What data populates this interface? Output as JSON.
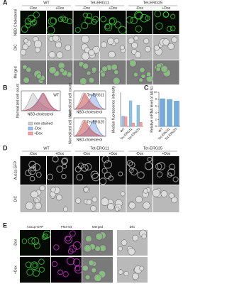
{
  "panel_a": {
    "label": "A",
    "columns": [
      "WT",
      "Tet-ERG11",
      "Tet-ERG25"
    ],
    "conditions": [
      "-Dox",
      "+Dox"
    ],
    "rows": [
      "NBD-Cholesterol",
      "DIC",
      "Merged"
    ]
  },
  "panel_b": {
    "label": "B",
    "histogram_titles": [
      "WT",
      "Tet-ERG11",
      "Tet-ERG25"
    ],
    "histogram_y_label": "Normalized cell count",
    "histogram_x_label": "NBD-cholesterol",
    "legend": [
      "non-stained",
      "-Dox",
      "+Dox"
    ],
    "bar_chart": {
      "type": "bar",
      "y_label": "Median fluorescence intensity",
      "categories": [
        "WT",
        "Tet-ERG11",
        "Tet-ERG25"
      ],
      "ylim": [
        0,
        100
      ],
      "series": [
        {
          "color": "#6baed6",
          "values": [
            30,
            75,
            62
          ]
        },
        {
          "color": "#f08080",
          "values": [
            28,
            10,
            12
          ]
        }
      ]
    }
  },
  "panel_c": {
    "label": "C",
    "chart_data": {
      "type": "bar",
      "y_label": "Relative mRNA level of AUS1",
      "categories": [
        "WT",
        "Tet-ERG11",
        "Tet-ERG25"
      ],
      "values": [
        8.1,
        7.9,
        7.4
      ],
      "color": "#4a8fd0",
      "ylim": [
        0,
        10
      ],
      "yticks": [
        0,
        2,
        4,
        6,
        8,
        10
      ]
    }
  },
  "panel_d": {
    "label": "D",
    "columns": [
      "WT",
      "Tet-ERG11",
      "Tet-ERG25"
    ],
    "conditions": [
      "-Dox",
      "+Dox"
    ],
    "rows": [
      "Aus1p-GFP",
      "DIC"
    ]
  },
  "panel_e": {
    "label": "E",
    "columns": [
      "Aus1p-GFP",
      "FM4-64",
      "Merged",
      "DIC"
    ],
    "rows": [
      "-Dox",
      "+Dox"
    ]
  }
}
